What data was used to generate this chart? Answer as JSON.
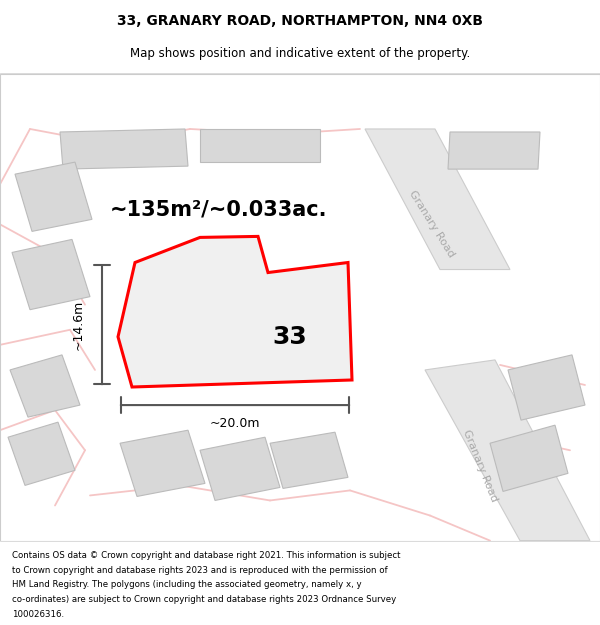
{
  "title_line1": "33, GRANARY ROAD, NORTHAMPTON, NN4 0XB",
  "title_line2": "Map shows position and indicative extent of the property.",
  "footer_lines": [
    "Contains OS data © Crown copyright and database right 2021. This information is subject",
    "to Crown copyright and database rights 2023 and is reproduced with the permission of",
    "HM Land Registry. The polygons (including the associated geometry, namely x, y",
    "co-ordinates) are subject to Crown copyright and database rights 2023 Ordnance Survey",
    "100026316."
  ],
  "area_label": "~135m²/~0.033ac.",
  "width_label": "~20.0m",
  "height_label": "~14.6m",
  "property_number": "33",
  "bg_color": "#ffffff",
  "map_bg": "#f5f5f5",
  "road_color_light": "#f5c5c5",
  "property_outline_color": "#ff0000",
  "dim_line_color": "#555555",
  "road_label_color": "#aaaaaa",
  "title_color": "#000000",
  "footer_color": "#000000",
  "building_fill": "#d8d8d8",
  "building_edge": "#bbbbbb",
  "road_fill": "#e6e6e6",
  "road_edge": "#cccccc",
  "prop_fill": "#f0f0f0"
}
